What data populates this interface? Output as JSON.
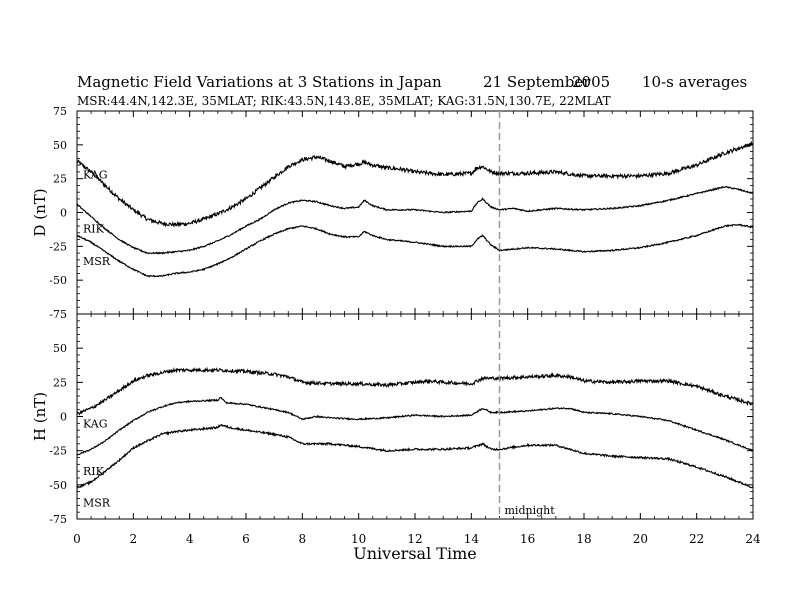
{
  "header": {
    "title": "Magnetic Field Variations at 3 Stations in Japan",
    "date": "21 September",
    "year": "2005",
    "averaging": "10-s averages",
    "stations_line": "MSR:44.4N,142.3E, 35MLAT;  RIK:43.5N,143.8E, 35MLAT;  KAG:31.5N,130.7E, 22MLAT"
  },
  "annotation": {
    "midnight_label": "midnight",
    "midnight_ut": 15
  },
  "chart_data": {
    "type": "line",
    "xlabel": "Universal Time",
    "xlim": [
      0,
      24
    ],
    "xticks": [
      0,
      2,
      4,
      6,
      8,
      10,
      12,
      14,
      16,
      18,
      20,
      22,
      24
    ],
    "panels": [
      {
        "ylabel": "D (nT)",
        "ylim": [
          -75,
          75
        ],
        "yticks": [
          -75,
          -50,
          -25,
          0,
          25,
          50,
          75
        ],
        "series": [
          {
            "name": "KAG",
            "noise": 1.4,
            "points": [
              [
                0,
                38
              ],
              [
                0.5,
                30
              ],
              [
                1,
                20
              ],
              [
                1.5,
                10
              ],
              [
                2,
                2
              ],
              [
                2.5,
                -5
              ],
              [
                3,
                -8
              ],
              [
                3.5,
                -9
              ],
              [
                4,
                -8
              ],
              [
                4.5,
                -5
              ],
              [
                5,
                -1
              ],
              [
                5.5,
                4
              ],
              [
                6,
                10
              ],
              [
                6.5,
                18
              ],
              [
                7,
                26
              ],
              [
                7.5,
                34
              ],
              [
                8,
                39
              ],
              [
                8.5,
                41
              ],
              [
                9,
                38
              ],
              [
                9.5,
                34
              ],
              [
                10,
                36
              ],
              [
                10.2,
                37
              ],
              [
                10.5,
                35
              ],
              [
                11,
                33
              ],
              [
                11.5,
                32
              ],
              [
                12,
                30
              ],
              [
                13,
                28
              ],
              [
                14,
                29
              ],
              [
                14.2,
                33
              ],
              [
                14.4,
                34
              ],
              [
                14.7,
                30
              ],
              [
                15,
                29
              ],
              [
                16,
                29
              ],
              [
                17,
                30
              ],
              [
                18,
                27
              ],
              [
                19,
                27
              ],
              [
                20,
                27
              ],
              [
                21,
                29
              ],
              [
                22,
                35
              ],
              [
                23,
                44
              ],
              [
                24,
                51
              ]
            ]
          },
          {
            "name": "RIK",
            "noise": 0.5,
            "points": [
              [
                0,
                6
              ],
              [
                0.5,
                -3
              ],
              [
                1,
                -12
              ],
              [
                1.5,
                -20
              ],
              [
                2,
                -26
              ],
              [
                2.5,
                -30
              ],
              [
                3,
                -30
              ],
              [
                3.5,
                -29
              ],
              [
                4,
                -28
              ],
              [
                4.5,
                -25
              ],
              [
                5,
                -21
              ],
              [
                5.5,
                -16
              ],
              [
                6,
                -10
              ],
              [
                6.5,
                -5
              ],
              [
                7,
                2
              ],
              [
                7.5,
                7
              ],
              [
                8,
                9
              ],
              [
                8.5,
                8
              ],
              [
                9,
                5
              ],
              [
                9.5,
                3
              ],
              [
                10,
                4
              ],
              [
                10.2,
                9
              ],
              [
                10.5,
                5
              ],
              [
                11,
                2
              ],
              [
                12,
                2
              ],
              [
                13,
                0
              ],
              [
                14,
                1
              ],
              [
                14.2,
                7
              ],
              [
                14.4,
                10
              ],
              [
                14.7,
                4
              ],
              [
                15,
                2
              ],
              [
                15.5,
                3
              ],
              [
                16,
                1
              ],
              [
                17,
                3
              ],
              [
                18,
                2
              ],
              [
                19,
                3
              ],
              [
                20,
                5
              ],
              [
                21,
                9
              ],
              [
                22,
                14
              ],
              [
                23,
                19
              ],
              [
                23.5,
                17
              ],
              [
                24,
                14
              ]
            ]
          },
          {
            "name": "MSR",
            "noise": 0.5,
            "points": [
              [
                0,
                -17
              ],
              [
                0.5,
                -22
              ],
              [
                1,
                -29
              ],
              [
                1.5,
                -36
              ],
              [
                2,
                -42
              ],
              [
                2.5,
                -47
              ],
              [
                3,
                -47
              ],
              [
                3.5,
                -45
              ],
              [
                4,
                -44
              ],
              [
                4.5,
                -42
              ],
              [
                5,
                -38
              ],
              [
                5.5,
                -33
              ],
              [
                6,
                -27
              ],
              [
                6.5,
                -21
              ],
              [
                7,
                -16
              ],
              [
                7.5,
                -12
              ],
              [
                8,
                -10
              ],
              [
                8.5,
                -12
              ],
              [
                9,
                -16
              ],
              [
                9.5,
                -18
              ],
              [
                10,
                -18
              ],
              [
                10.2,
                -14
              ],
              [
                10.5,
                -17
              ],
              [
                11,
                -20
              ],
              [
                12,
                -22
              ],
              [
                13,
                -25
              ],
              [
                14,
                -25
              ],
              [
                14.2,
                -20
              ],
              [
                14.4,
                -17
              ],
              [
                14.7,
                -24
              ],
              [
                15,
                -28
              ],
              [
                15.5,
                -27
              ],
              [
                16,
                -26
              ],
              [
                17,
                -27
              ],
              [
                18,
                -29
              ],
              [
                19,
                -28
              ],
              [
                20,
                -26
              ],
              [
                21,
                -22
              ],
              [
                22,
                -17
              ],
              [
                23,
                -10
              ],
              [
                23.5,
                -9
              ],
              [
                24,
                -11
              ]
            ]
          }
        ]
      },
      {
        "ylabel": "H (nT)",
        "ylim": [
          -75,
          75
        ],
        "yticks": [
          -75,
          -50,
          -25,
          0,
          25,
          50,
          75
        ],
        "series": [
          {
            "name": "KAG",
            "noise": 1.2,
            "points": [
              [
                0,
                2
              ],
              [
                0.5,
                6
              ],
              [
                1,
                12
              ],
              [
                1.5,
                19
              ],
              [
                2,
                26
              ],
              [
                2.5,
                30
              ],
              [
                3,
                32
              ],
              [
                3.5,
                34
              ],
              [
                4,
                34
              ],
              [
                4.5,
                34
              ],
              [
                5,
                34
              ],
              [
                6,
                33
              ],
              [
                7,
                31
              ],
              [
                7.5,
                29
              ],
              [
                8,
                25
              ],
              [
                9,
                24
              ],
              [
                10,
                24
              ],
              [
                11,
                23
              ],
              [
                12,
                25
              ],
              [
                12.5,
                26
              ],
              [
                13,
                25
              ],
              [
                14,
                24
              ],
              [
                14.4,
                28
              ],
              [
                15,
                28
              ],
              [
                16,
                29
              ],
              [
                17,
                30
              ],
              [
                17.5,
                29
              ],
              [
                18,
                26
              ],
              [
                19,
                25
              ],
              [
                20,
                26
              ],
              [
                21,
                26
              ],
              [
                22,
                22
              ],
              [
                23,
                15
              ],
              [
                24,
                9
              ]
            ]
          },
          {
            "name": "RIK",
            "noise": 0.5,
            "points": [
              [
                0,
                -28
              ],
              [
                0.5,
                -24
              ],
              [
                1,
                -18
              ],
              [
                1.5,
                -10
              ],
              [
                2,
                -3
              ],
              [
                2.5,
                3
              ],
              [
                3,
                7
              ],
              [
                3.5,
                10
              ],
              [
                4,
                11
              ],
              [
                5,
                12
              ],
              [
                5.1,
                14
              ],
              [
                5.3,
                10
              ],
              [
                6,
                9
              ],
              [
                7,
                5
              ],
              [
                7.5,
                3
              ],
              [
                8,
                -2
              ],
              [
                8.5,
                0
              ],
              [
                9,
                -1
              ],
              [
                10,
                -2
              ],
              [
                11,
                -1
              ],
              [
                12,
                1
              ],
              [
                13,
                0
              ],
              [
                14,
                1
              ],
              [
                14.4,
                6
              ],
              [
                14.7,
                3
              ],
              [
                15,
                3
              ],
              [
                16,
                4
              ],
              [
                17,
                6
              ],
              [
                17.5,
                6
              ],
              [
                18,
                3
              ],
              [
                19,
                2
              ],
              [
                20,
                0
              ],
              [
                21,
                -3
              ],
              [
                22,
                -10
              ],
              [
                23,
                -17
              ],
              [
                24,
                -25
              ]
            ]
          },
          {
            "name": "MSR",
            "noise": 0.7,
            "points": [
              [
                0,
                -52
              ],
              [
                0.5,
                -48
              ],
              [
                1,
                -40
              ],
              [
                1.5,
                -32
              ],
              [
                2,
                -23
              ],
              [
                2.5,
                -18
              ],
              [
                3,
                -13
              ],
              [
                3.5,
                -11
              ],
              [
                4,
                -10
              ],
              [
                5,
                -8
              ],
              [
                5.1,
                -6
              ],
              [
                5.4,
                -8
              ],
              [
                6,
                -10
              ],
              [
                7,
                -13
              ],
              [
                7.5,
                -15
              ],
              [
                8,
                -20
              ],
              [
                9,
                -20
              ],
              [
                10,
                -22
              ],
              [
                11,
                -25
              ],
              [
                12,
                -24
              ],
              [
                13,
                -24
              ],
              [
                14,
                -23
              ],
              [
                14.4,
                -20
              ],
              [
                14.7,
                -24
              ],
              [
                15,
                -24
              ],
              [
                16,
                -21
              ],
              [
                17,
                -21
              ],
              [
                18,
                -27
              ],
              [
                19,
                -29
              ],
              [
                20,
                -30
              ],
              [
                21,
                -31
              ],
              [
                22,
                -37
              ],
              [
                23,
                -44
              ],
              [
                24,
                -52
              ]
            ]
          }
        ]
      }
    ],
    "series_label_positions": {
      "D": {
        "KAG": 28,
        "RIK": -12,
        "MSR": -36
      },
      "H": {
        "KAG": -5,
        "RIK": -40,
        "MSR": -63
      }
    }
  }
}
